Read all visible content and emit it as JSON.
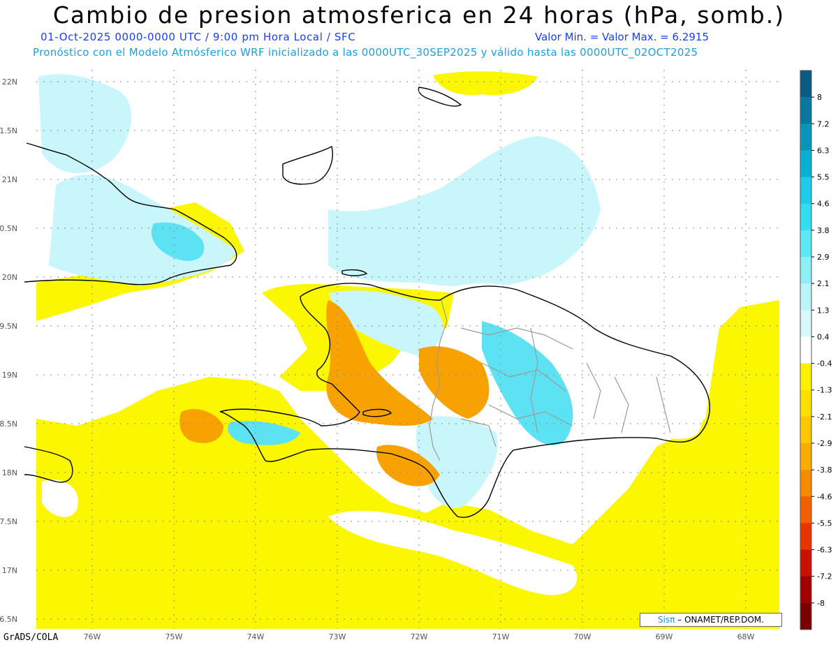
{
  "header": {
    "title": "Cambio de presion atmosferica en 24 horas (hPa, somb.)",
    "line1_left": "01-Oct-2025   0000-0000 UTC / 9:00 pm Hora Local / SFC",
    "line1_right": "Valor Min. =   Valor Max. = 6.2915",
    "line2": "Pronóstico con el Modelo Atmósferico WRF inicializado a las 0000UTC_30SEP2025 y válido hasta las  0000UTC_02OCT2025"
  },
  "axes": {
    "lat_labels": [
      "22N",
      "1.5N",
      "21N",
      "0.5N",
      "20N",
      "9.5N",
      "19N",
      "8.5N",
      "18N",
      "7.5N",
      "17N",
      "6.5N"
    ],
    "lon_labels": [
      "76W",
      "75W",
      "74W",
      "73W",
      "72W",
      "71W",
      "70W",
      "69W",
      "68W"
    ]
  },
  "colorbar": {
    "labels": [
      "8",
      "7.2",
      "6.3",
      "5.5",
      "4.6",
      "3.8",
      "2.9",
      "2.1",
      "1.3",
      "0.4",
      "-0.4",
      "-1.3",
      "-2.1",
      "-2.9",
      "-3.8",
      "-4.6",
      "-5.5",
      "-6.3",
      "-7.2",
      "-8"
    ],
    "colors": [
      "#0a5a82",
      "#0a789e",
      "#0895b8",
      "#08b1d2",
      "#1ecbe8",
      "#34dcf0",
      "#5ce8f4",
      "#8ef0f6",
      "#b8f4f8",
      "#d8f8fa",
      "#ffffff",
      "#fcf200",
      "#fde000",
      "#fcc800",
      "#f9ad00",
      "#f68a00",
      "#f25f00",
      "#e63500",
      "#c81200",
      "#a00000",
      "#780000"
    ]
  },
  "credit": {
    "brand": "Sisπ",
    "text": "– ONAMET/REP.DOM."
  },
  "footer": {
    "software": "GrADS/COLA"
  },
  "legend_colors": {
    "yellow": "#fbf700",
    "orange": "#f7a200",
    "light_cyan": "#c9f6fa",
    "cyan": "#5ce2f2",
    "coast": "#000000",
    "provinces": "#9a9a9a"
  }
}
